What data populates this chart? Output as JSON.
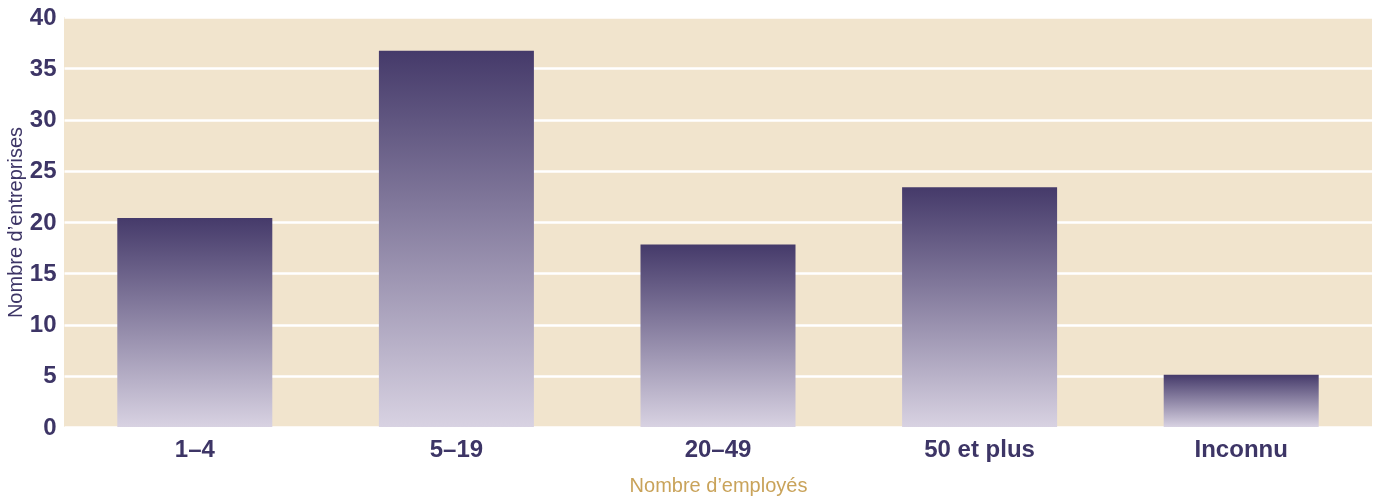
{
  "chart_data": {
    "type": "bar",
    "xlabel": "Nombre d’employés",
    "ylabel": "Nombre d’entreprises",
    "categories": [
      "1–4",
      "5–19",
      "20–49",
      "50 et plus",
      "Inconnu"
    ],
    "values": [
      20.4,
      36.7,
      17.8,
      23.4,
      5.1
    ],
    "color": "#453a6a",
    "ylim": [
      0,
      40
    ],
    "yticks": [
      0,
      5,
      10,
      15,
      20,
      25,
      30,
      35,
      40
    ],
    "grid": "y"
  }
}
